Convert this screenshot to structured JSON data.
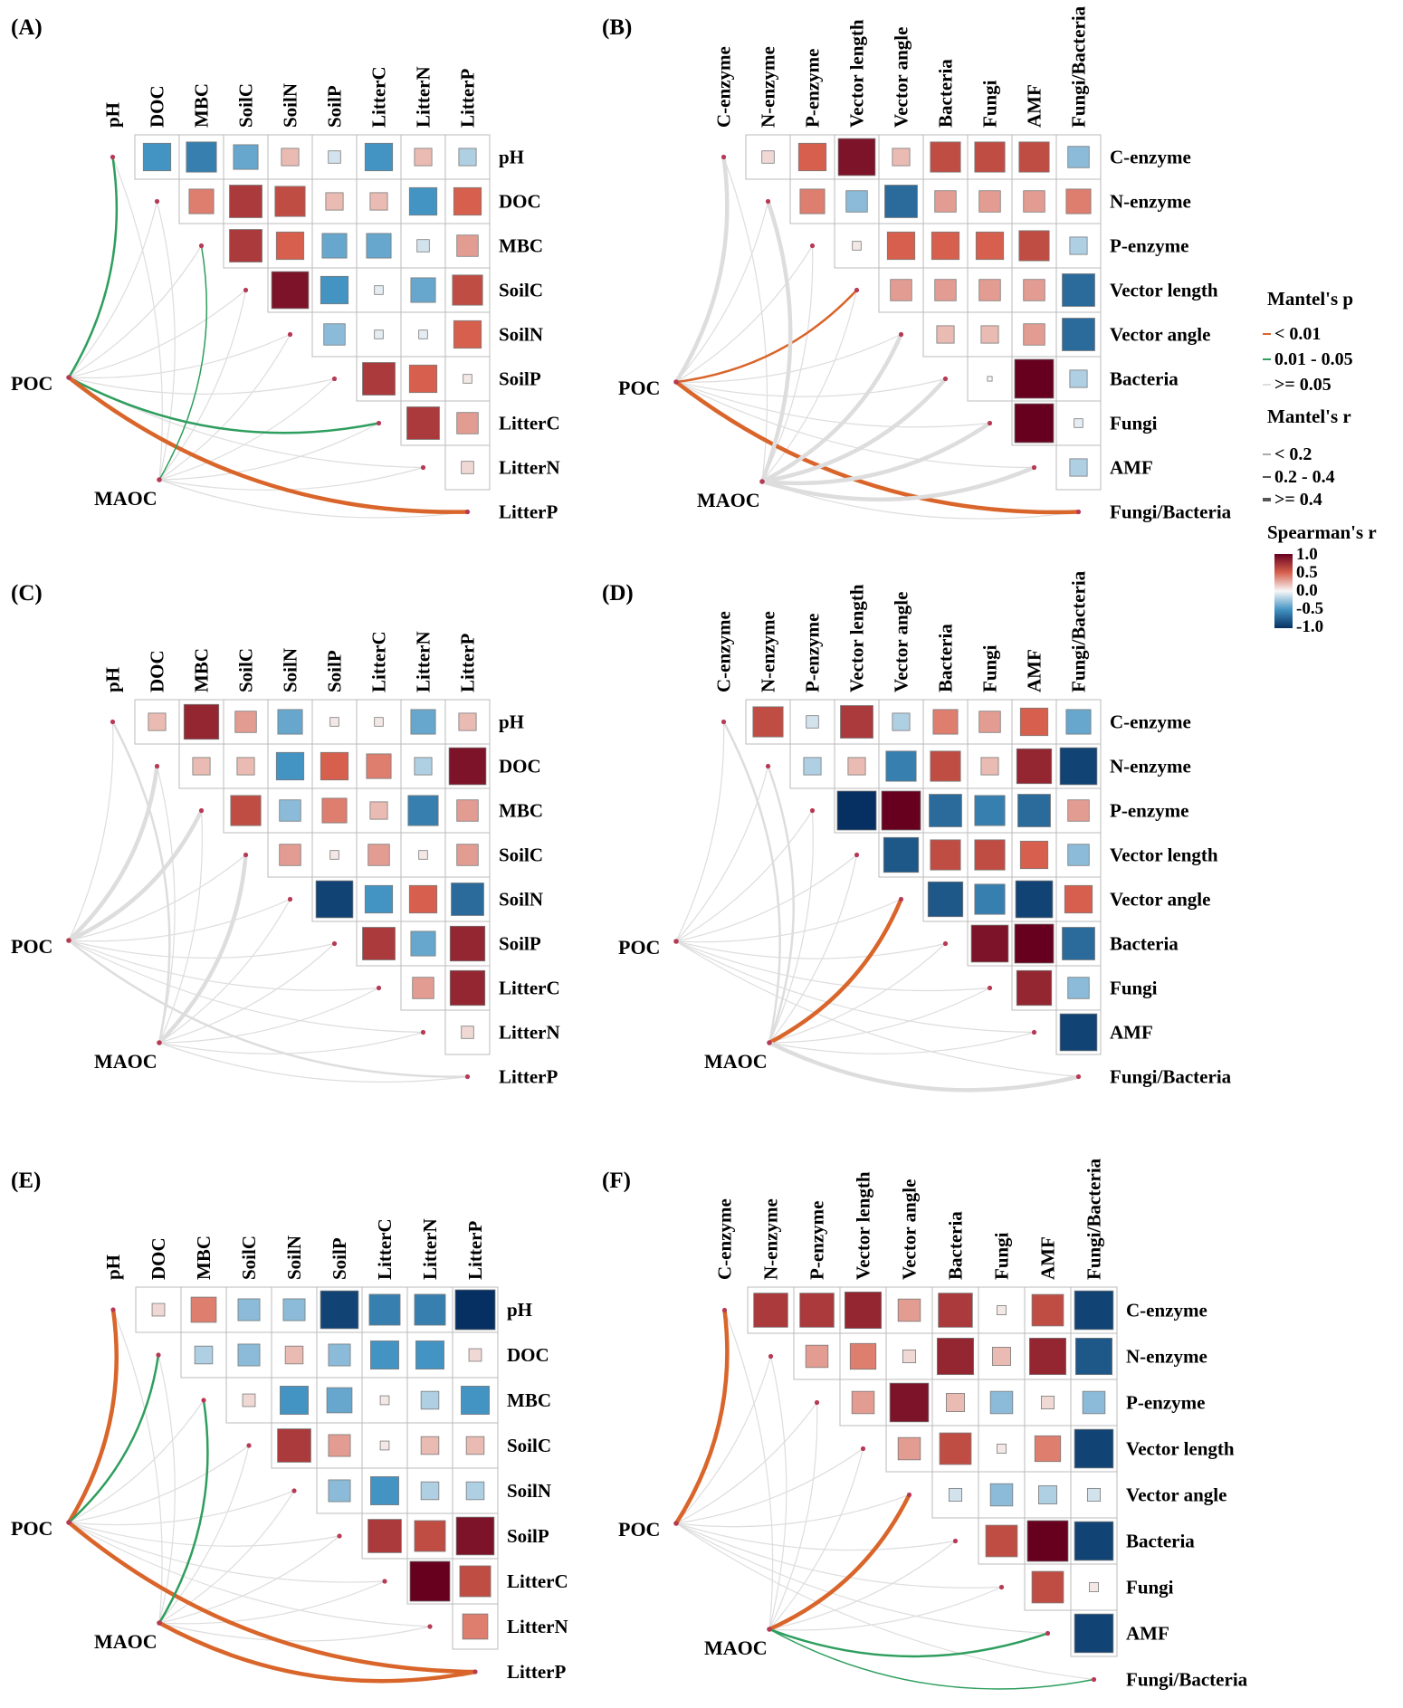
{
  "figure": {
    "panel_labels": [
      "(A)",
      "(B)",
      "(C)",
      "(D)",
      "(E)",
      "(F)"
    ],
    "colors": {
      "p_lt_001": "#d9652a",
      "p_001_005": "#2e9e5e",
      "p_ge_005": "#dddddd",
      "scale_high": "#67001f",
      "scale_mid": "#f7f7f7",
      "scale_low": "#053061",
      "grid": "#bbbbbb",
      "node": "#b73a55"
    }
  },
  "legend": {
    "mantel_p_title": "Mantel's p",
    "mantel_p_items": [
      "< 0.01",
      "0.01 - 0.05",
      ">= 0.05"
    ],
    "mantel_r_title": "Mantel's r",
    "mantel_r_items": [
      "< 0.2",
      "0.2 - 0.4",
      ">= 0.4"
    ],
    "spearman_title": "Spearman's r",
    "spearman_ticks": [
      "1.0",
      "0.5",
      "0.0",
      "-0.5",
      "-1.0"
    ]
  },
  "chart_data": [
    {
      "type": "heatmap",
      "panel": "(A)",
      "variables": [
        "pH",
        "DOC",
        "MBC",
        "SoilC",
        "SoilN",
        "SoilP",
        "LitterC",
        "LitterN",
        "LitterP"
      ],
      "correlation": [
        [
          -0.5,
          -0.6,
          -0.4,
          0.2,
          -0.1,
          -0.5,
          0.2,
          -0.2
        ],
        [
          0.4,
          0.7,
          0.6,
          0.2,
          0.2,
          -0.5,
          0.5
        ],
        [
          0.7,
          0.5,
          -0.4,
          -0.4,
          -0.1,
          0.3
        ],
        [
          0.9,
          -0.5,
          -0.05,
          -0.4,
          0.6
        ],
        [
          -0.3,
          -0.05,
          -0.05,
          0.5
        ],
        [
          0.7,
          0.5,
          0.05
        ],
        [
          0.7,
          0.3
        ],
        [
          0.1
        ]
      ],
      "mantel": [
        {
          "env": "POC",
          "target": "pH",
          "p": "mid",
          "r": "mid"
        },
        {
          "env": "POC",
          "target": "LitterC",
          "p": "mid",
          "r": "mid"
        },
        {
          "env": "POC",
          "target": "LitterP",
          "p": "low",
          "r": "high"
        },
        {
          "env": "MAOC",
          "target": "MBC",
          "p": "mid",
          "r": "low"
        }
      ]
    },
    {
      "type": "heatmap",
      "panel": "(B)",
      "variables": [
        "C-enzyme",
        "N-enzyme",
        "P-enzyme",
        "Vector length",
        "Vector angle",
        "Bacteria",
        "Fungi",
        "AMF",
        "Fungi/Bacteria"
      ],
      "correlation": [
        [
          0.1,
          0.5,
          0.9,
          0.2,
          0.6,
          0.6,
          0.6,
          -0.3
        ],
        [
          0.4,
          -0.3,
          -0.7,
          0.3,
          0.3,
          0.3,
          0.4
        ],
        [
          0.05,
          0.5,
          0.5,
          0.5,
          0.6,
          -0.2
        ],
        [
          0.3,
          0.3,
          0.3,
          0.3,
          -0.7
        ],
        [
          0.2,
          0.2,
          0.3,
          -0.7
        ],
        [
          0.0,
          1.0,
          -0.2
        ],
        [
          1.0,
          -0.05
        ],
        [
          -0.2
        ]
      ],
      "mantel": [
        {
          "env": "POC",
          "target": "C-enzyme",
          "p": "high",
          "r": "high"
        },
        {
          "env": "POC",
          "target": "Vector length",
          "p": "low",
          "r": "mid"
        },
        {
          "env": "POC",
          "target": "Fungi/Bacteria",
          "p": "low",
          "r": "high"
        },
        {
          "env": "MAOC",
          "target": "N-enzyme",
          "p": "high",
          "r": "high"
        },
        {
          "env": "MAOC",
          "target": "Vector angle",
          "p": "high",
          "r": "high"
        },
        {
          "env": "MAOC",
          "target": "Bacteria",
          "p": "high",
          "r": "high"
        },
        {
          "env": "MAOC",
          "target": "Fungi",
          "p": "high",
          "r": "high"
        },
        {
          "env": "MAOC",
          "target": "AMF",
          "p": "high",
          "r": "high"
        }
      ]
    },
    {
      "type": "heatmap",
      "panel": "(C)",
      "variables": [
        "pH",
        "DOC",
        "MBC",
        "SoilC",
        "SoilN",
        "SoilP",
        "LitterC",
        "LitterN",
        "LitterP"
      ],
      "correlation": [
        [
          0.2,
          0.8,
          0.3,
          -0.4,
          0.05,
          0.05,
          -0.4,
          0.2
        ],
        [
          0.2,
          0.2,
          -0.5,
          0.5,
          0.4,
          -0.2,
          0.9
        ],
        [
          0.6,
          -0.3,
          0.4,
          0.2,
          -0.6,
          0.3
        ],
        [
          0.3,
          0.05,
          0.3,
          0.05,
          0.3
        ],
        [
          -0.9,
          -0.5,
          0.5,
          -0.7
        ],
        [
          0.7,
          -0.4,
          0.8
        ],
        [
          0.3,
          0.8
        ],
        [
          0.1
        ]
      ],
      "mantel": [
        {
          "env": "POC",
          "target": "DOC",
          "p": "high",
          "r": "high"
        },
        {
          "env": "POC",
          "target": "MBC",
          "p": "high",
          "r": "high"
        },
        {
          "env": "POC",
          "target": "LitterP",
          "p": "high",
          "r": "mid"
        },
        {
          "env": "MAOC",
          "target": "pH",
          "p": "high",
          "r": "mid"
        },
        {
          "env": "MAOC",
          "target": "SoilC",
          "p": "high",
          "r": "high"
        }
      ]
    },
    {
      "type": "heatmap",
      "panel": "(D)",
      "variables": [
        "C-enzyme",
        "N-enzyme",
        "P-enzyme",
        "Vector length",
        "Vector angle",
        "Bacteria",
        "Fungi",
        "AMF",
        "Fungi/Bacteria"
      ],
      "correlation": [
        [
          0.6,
          -0.1,
          0.7,
          -0.2,
          0.4,
          0.3,
          0.5,
          -0.4
        ],
        [
          -0.2,
          0.2,
          -0.6,
          0.6,
          0.2,
          0.8,
          -0.9
        ],
        [
          -1.0,
          1.0,
          -0.7,
          -0.6,
          -0.7,
          0.3
        ],
        [
          -0.8,
          0.6,
          0.6,
          0.5,
          -0.3
        ],
        [
          -0.8,
          -0.6,
          -0.9,
          0.5
        ],
        [
          0.9,
          1.0,
          -0.7
        ],
        [
          0.8,
          -0.3
        ],
        [
          -0.9
        ]
      ],
      "mantel": [
        {
          "env": "MAOC",
          "target": "C-enzyme",
          "p": "high",
          "r": "mid"
        },
        {
          "env": "MAOC",
          "target": "N-enzyme",
          "p": "high",
          "r": "mid"
        },
        {
          "env": "MAOC",
          "target": "Vector angle",
          "p": "low",
          "r": "high"
        },
        {
          "env": "MAOC",
          "target": "Fungi/Bacteria",
          "p": "high",
          "r": "high"
        }
      ]
    },
    {
      "type": "heatmap",
      "panel": "(E)",
      "variables": [
        "pH",
        "DOC",
        "MBC",
        "SoilC",
        "SoilN",
        "SoilP",
        "LitterC",
        "LitterN",
        "LitterP"
      ],
      "correlation": [
        [
          0.1,
          0.4,
          -0.3,
          -0.3,
          -0.9,
          -0.6,
          -0.6,
          -1.0
        ],
        [
          -0.2,
          -0.3,
          0.2,
          -0.3,
          -0.5,
          -0.5,
          0.1
        ],
        [
          0.1,
          -0.5,
          -0.4,
          0.05,
          -0.2,
          -0.5
        ],
        [
          0.7,
          0.3,
          0.05,
          0.2,
          0.2
        ],
        [
          -0.3,
          -0.5,
          -0.2,
          -0.2
        ],
        [
          0.7,
          0.6,
          0.9
        ],
        [
          1.0,
          0.6
        ],
        [
          0.4
        ]
      ],
      "mantel": [
        {
          "env": "POC",
          "target": "pH",
          "p": "low",
          "r": "high"
        },
        {
          "env": "POC",
          "target": "DOC",
          "p": "mid",
          "r": "mid"
        },
        {
          "env": "POC",
          "target": "LitterP",
          "p": "low",
          "r": "high"
        },
        {
          "env": "MAOC",
          "target": "MBC",
          "p": "mid",
          "r": "mid"
        },
        {
          "env": "MAOC",
          "target": "LitterP",
          "p": "low",
          "r": "high"
        }
      ]
    },
    {
      "type": "heatmap",
      "panel": "(F)",
      "variables": [
        "C-enzyme",
        "N-enzyme",
        "P-enzyme",
        "Vector length",
        "Vector angle",
        "Bacteria",
        "Fungi",
        "AMF",
        "Fungi/Bacteria"
      ],
      "correlation": [
        [
          0.7,
          0.7,
          0.8,
          0.3,
          0.7,
          0.05,
          0.6,
          -0.9
        ],
        [
          0.3,
          0.4,
          0.1,
          0.8,
          0.2,
          0.8,
          -0.8
        ],
        [
          0.3,
          0.9,
          0.2,
          -0.3,
          0.1,
          -0.3
        ],
        [
          0.3,
          0.6,
          0.05,
          0.4,
          -0.9
        ],
        [
          -0.1,
          -0.3,
          -0.2,
          -0.1
        ],
        [
          0.6,
          1.0,
          -0.9
        ],
        [
          0.6,
          0.05
        ],
        [
          -0.9
        ]
      ],
      "mantel": [
        {
          "env": "POC",
          "target": "C-enzyme",
          "p": "low",
          "r": "high"
        },
        {
          "env": "MAOC",
          "target": "Vector angle",
          "p": "low",
          "r": "high"
        },
        {
          "env": "MAOC",
          "target": "AMF",
          "p": "mid",
          "r": "mid"
        },
        {
          "env": "MAOC",
          "target": "Fungi/Bacteria",
          "p": "mid",
          "r": "low"
        }
      ]
    }
  ]
}
